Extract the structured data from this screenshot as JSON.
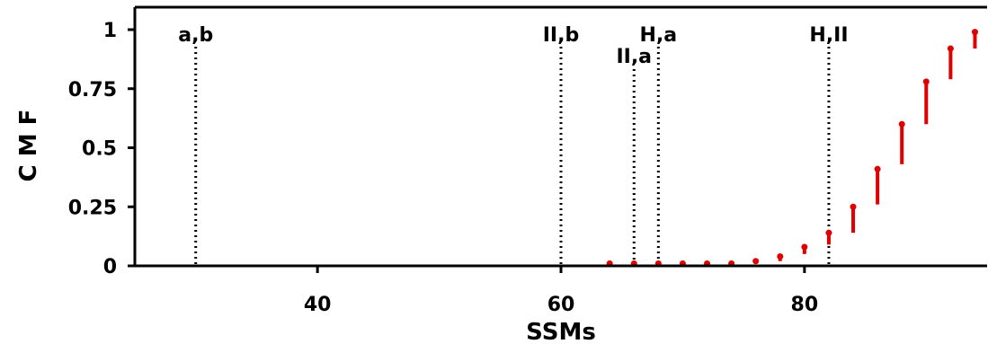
{
  "chart_data": {
    "type": "scatter",
    "xlabel": "SSMs",
    "ylabel": "C M F",
    "xlim": [
      25,
      95
    ],
    "ylim": [
      0,
      1
    ],
    "x_ticks": [
      40,
      60,
      80
    ],
    "x_tick_labels": [
      "40",
      "60",
      "80"
    ],
    "y_ticks": [
      0,
      0.25,
      0.5,
      0.75,
      1
    ],
    "y_tick_labels": [
      "0",
      "0.25",
      "0.5",
      "0.75",
      "1"
    ],
    "grid": false,
    "series": [
      {
        "color": "#e00000",
        "marker": "drop",
        "points": [
          {
            "x": 64,
            "y_low": 0.0,
            "y_high": 0.01
          },
          {
            "x": 66,
            "y_low": 0.0,
            "y_high": 0.01
          },
          {
            "x": 68,
            "y_low": 0.0,
            "y_high": 0.01
          },
          {
            "x": 70,
            "y_low": 0.0,
            "y_high": 0.01
          },
          {
            "x": 72,
            "y_low": 0.0,
            "y_high": 0.01
          },
          {
            "x": 74,
            "y_low": 0.0,
            "y_high": 0.01
          },
          {
            "x": 76,
            "y_low": 0.01,
            "y_high": 0.02
          },
          {
            "x": 78,
            "y_low": 0.02,
            "y_high": 0.04
          },
          {
            "x": 80,
            "y_low": 0.05,
            "y_high": 0.08
          },
          {
            "x": 82,
            "y_low": 0.09,
            "y_high": 0.14
          },
          {
            "x": 84,
            "y_low": 0.14,
            "y_high": 0.25
          },
          {
            "x": 86,
            "y_low": 0.26,
            "y_high": 0.41
          },
          {
            "x": 88,
            "y_low": 0.43,
            "y_high": 0.6
          },
          {
            "x": 90,
            "y_low": 0.6,
            "y_high": 0.78
          },
          {
            "x": 92,
            "y_low": 0.79,
            "y_high": 0.92
          },
          {
            "x": 94,
            "y_low": 0.92,
            "y_high": 0.99
          }
        ]
      }
    ],
    "vertical_lines": [
      {
        "x": 30,
        "label": "a,b",
        "label_level": "upper"
      },
      {
        "x": 60,
        "label": "II,b",
        "label_level": "upper"
      },
      {
        "x": 66,
        "label": "II,a",
        "label_level": "lower"
      },
      {
        "x": 68,
        "label": "H,a",
        "label_level": "upper"
      },
      {
        "x": 82,
        "label": "H,II",
        "label_level": "upper"
      }
    ]
  }
}
